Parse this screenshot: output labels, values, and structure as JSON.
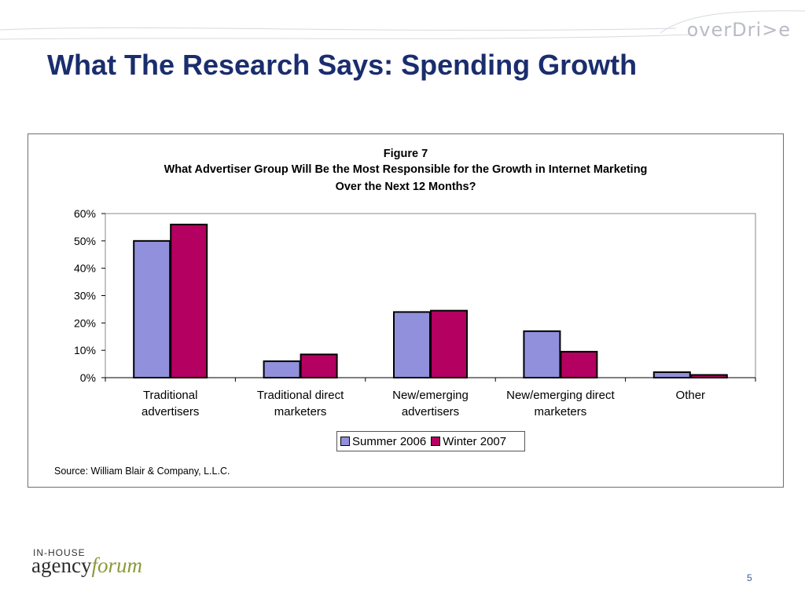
{
  "slide": {
    "title": "What The Research Says: Spending Growth",
    "brand": "overDri>e",
    "page_number": "5",
    "footer_logo": {
      "small": "IN-HOUSE",
      "main": "agency",
      "accent": "forum"
    }
  },
  "colors": {
    "title": "#1a2d6e",
    "summer": "#9090dc",
    "winter": "#b40060"
  },
  "chart_data": {
    "type": "bar",
    "title": "Figure 7",
    "subtitle_line1": "What Advertiser Group Will Be the Most Responsible for the Growth in Internet Marketing",
    "subtitle_line2": "Over the Next 12 Months?",
    "categories": [
      [
        "Traditional",
        "advertisers"
      ],
      [
        "Traditional direct",
        "marketers"
      ],
      [
        "New/emerging",
        "advertisers"
      ],
      [
        "New/emerging direct",
        "marketers"
      ],
      [
        "Other"
      ]
    ],
    "series": [
      {
        "name": "Summer 2006",
        "values": [
          50,
          6,
          24,
          17,
          2
        ]
      },
      {
        "name": "Winter 2007",
        "values": [
          56,
          8.5,
          24.5,
          9.5,
          1
        ]
      }
    ],
    "ylim": [
      0,
      60
    ],
    "yticks": [
      "0%",
      "10%",
      "20%",
      "30%",
      "40%",
      "50%",
      "60%"
    ],
    "legend": "bottom-center",
    "source": "Source: William Blair & Company, L.L.C."
  }
}
